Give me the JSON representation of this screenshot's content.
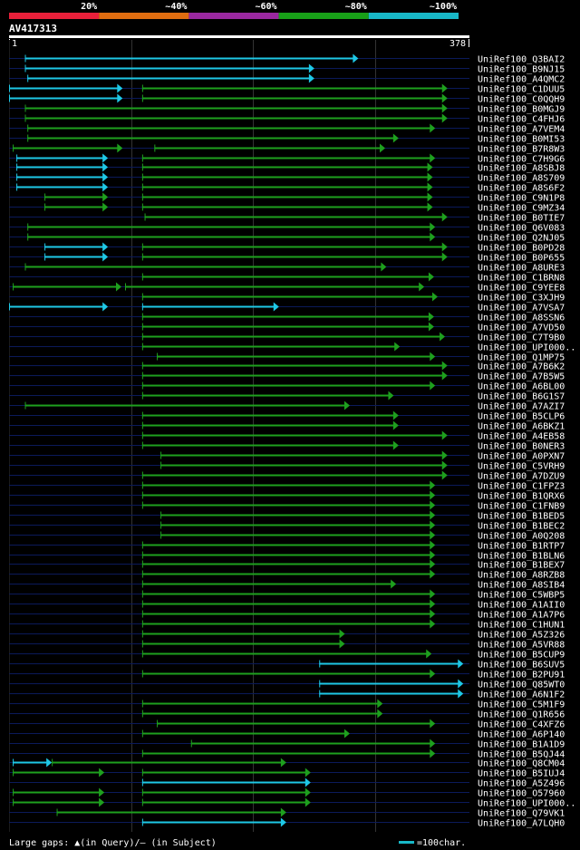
{
  "chart_data": {
    "type": "alignment",
    "title": "AV417313",
    "query_start_label": "1",
    "query_end_label": "378",
    "x_range": [
      1,
      378
    ],
    "identity_legend": [
      {
        "label": "20%",
        "color": "#e8203a"
      },
      {
        "label": "~40%",
        "color": "#e06d10"
      },
      {
        "label": "~60%",
        "color": "#9a28a0"
      },
      {
        "label": "~80%",
        "color": "#18a018"
      },
      {
        "label": "~100%",
        "color": "#18b8c8"
      }
    ],
    "hits": [
      {
        "name": "UniRef100_Q3BAI2",
        "segs": [
          [
            14,
            287,
            "c"
          ]
        ]
      },
      {
        "name": "UniRef100_B9NJ15",
        "segs": [
          [
            14,
            251,
            "c"
          ]
        ]
      },
      {
        "name": "UniRef100_A4QMC2",
        "segs": [
          [
            16,
            251,
            "c"
          ]
        ]
      },
      {
        "name": "UniRef100_C1DUU5",
        "segs": [
          [
            1,
            94,
            "c"
          ],
          [
            110,
            360,
            "g"
          ]
        ]
      },
      {
        "name": "UniRef100_C0QQH9",
        "segs": [
          [
            1,
            94,
            "c"
          ],
          [
            110,
            360,
            "g"
          ]
        ]
      },
      {
        "name": "UniRef100_B0MGJ9",
        "segs": [
          [
            14,
            360,
            "g"
          ]
        ]
      },
      {
        "name": "UniRef100_C4FHJ6",
        "segs": [
          [
            14,
            360,
            "g"
          ]
        ]
      },
      {
        "name": "UniRef100_A7VEM4",
        "segs": [
          [
            16,
            350,
            "g"
          ]
        ]
      },
      {
        "name": "UniRef100_B0MI53",
        "segs": [
          [
            16,
            320,
            "g"
          ]
        ]
      },
      {
        "name": "UniRef100_B7R8W3",
        "segs": [
          [
            4,
            94,
            "g"
          ],
          [
            120,
            309,
            "g"
          ]
        ]
      },
      {
        "name": "UniRef100_C7H9G6",
        "segs": [
          [
            7,
            82,
            "c"
          ],
          [
            110,
            350,
            "g"
          ]
        ]
      },
      {
        "name": "UniRef100_A8SBJ8",
        "segs": [
          [
            7,
            82,
            "c"
          ],
          [
            110,
            348,
            "g"
          ]
        ]
      },
      {
        "name": "UniRef100_A8S709",
        "segs": [
          [
            7,
            82,
            "c"
          ],
          [
            110,
            348,
            "g"
          ]
        ]
      },
      {
        "name": "UniRef100_A8S6F2",
        "segs": [
          [
            7,
            82,
            "c"
          ],
          [
            110,
            348,
            "g"
          ]
        ]
      },
      {
        "name": "UniRef100_C9N1P8",
        "segs": [
          [
            30,
            82,
            "g"
          ],
          [
            110,
            348,
            "g"
          ]
        ]
      },
      {
        "name": "UniRef100_C9MZ34",
        "segs": [
          [
            30,
            82,
            "g"
          ],
          [
            110,
            348,
            "g"
          ]
        ]
      },
      {
        "name": "UniRef100_B0TIE7",
        "segs": [
          [
            112,
            360,
            "g"
          ]
        ]
      },
      {
        "name": "UniRef100_Q6V083",
        "segs": [
          [
            16,
            350,
            "g"
          ]
        ]
      },
      {
        "name": "UniRef100_Q2NJ05",
        "segs": [
          [
            16,
            350,
            "g"
          ]
        ]
      },
      {
        "name": "UniRef100_B0PD28",
        "segs": [
          [
            30,
            82,
            "c"
          ],
          [
            110,
            360,
            "g"
          ]
        ]
      },
      {
        "name": "UniRef100_B0P655",
        "segs": [
          [
            30,
            82,
            "c"
          ],
          [
            110,
            360,
            "g"
          ]
        ]
      },
      {
        "name": "UniRef100_A8URE3",
        "segs": [
          [
            14,
            310,
            "g"
          ]
        ]
      },
      {
        "name": "UniRef100_C1BRN8",
        "segs": [
          [
            110,
            349,
            "g"
          ]
        ]
      },
      {
        "name": "UniRef100_C9YEE8",
        "segs": [
          [
            4,
            93,
            "g"
          ],
          [
            96,
            341,
            "g"
          ]
        ]
      },
      {
        "name": "UniRef100_C3XJH9",
        "segs": [
          [
            110,
            352,
            "g"
          ]
        ]
      },
      {
        "name": "UniRef100_A7VSA7",
        "segs": [
          [
            1,
            82,
            "c"
          ],
          [
            110,
            222,
            "c"
          ]
        ]
      },
      {
        "name": "UniRef100_A8SSN6",
        "segs": [
          [
            110,
            349,
            "g"
          ]
        ]
      },
      {
        "name": "UniRef100_A7VD50",
        "segs": [
          [
            110,
            349,
            "g"
          ]
        ]
      },
      {
        "name": "UniRef100_C7T9B0",
        "segs": [
          [
            110,
            358,
            "g"
          ]
        ]
      },
      {
        "name": "UniRef100_UPI000..",
        "segs": [
          [
            110,
            321,
            "g"
          ]
        ]
      },
      {
        "name": "UniRef100_Q1MP75",
        "segs": [
          [
            122,
            350,
            "g"
          ]
        ]
      },
      {
        "name": "UniRef100_A7B6K2",
        "segs": [
          [
            110,
            360,
            "g"
          ]
        ]
      },
      {
        "name": "UniRef100_A7B5W5",
        "segs": [
          [
            110,
            360,
            "g"
          ]
        ]
      },
      {
        "name": "UniRef100_A6BL00",
        "segs": [
          [
            110,
            350,
            "g"
          ]
        ]
      },
      {
        "name": "UniRef100_B6G1S7",
        "segs": [
          [
            110,
            316,
            "g"
          ]
        ]
      },
      {
        "name": "UniRef100_A7AZI7",
        "segs": [
          [
            14,
            280,
            "g"
          ]
        ]
      },
      {
        "name": "UniRef100_B5CLP6",
        "segs": [
          [
            110,
            320,
            "g"
          ]
        ]
      },
      {
        "name": "UniRef100_A6BKZ1",
        "segs": [
          [
            110,
            320,
            "g"
          ]
        ]
      },
      {
        "name": "UniRef100_A4EB58",
        "segs": [
          [
            110,
            360,
            "g"
          ]
        ]
      },
      {
        "name": "UniRef100_B0NER3",
        "segs": [
          [
            110,
            320,
            "g"
          ]
        ]
      },
      {
        "name": "UniRef100_A0PXN7",
        "segs": [
          [
            125,
            360,
            "g"
          ]
        ]
      },
      {
        "name": "UniRef100_C5VRH9",
        "segs": [
          [
            125,
            360,
            "g"
          ]
        ]
      },
      {
        "name": "UniRef100_A7DZU9",
        "segs": [
          [
            110,
            360,
            "g"
          ]
        ]
      },
      {
        "name": "UniRef100_C1FPZ3",
        "segs": [
          [
            110,
            350,
            "g"
          ]
        ]
      },
      {
        "name": "UniRef100_B1QRX6",
        "segs": [
          [
            110,
            350,
            "g"
          ]
        ]
      },
      {
        "name": "UniRef100_C1FNB9",
        "segs": [
          [
            110,
            350,
            "g"
          ]
        ]
      },
      {
        "name": "UniRef100_B1BED5",
        "segs": [
          [
            125,
            350,
            "g"
          ]
        ]
      },
      {
        "name": "UniRef100_B1BEC2",
        "segs": [
          [
            125,
            350,
            "g"
          ]
        ]
      },
      {
        "name": "UniRef100_A0Q208",
        "segs": [
          [
            125,
            350,
            "g"
          ]
        ]
      },
      {
        "name": "UniRef100_B1RTP7",
        "segs": [
          [
            110,
            350,
            "g"
          ]
        ]
      },
      {
        "name": "UniRef100_B1BLN6",
        "segs": [
          [
            110,
            350,
            "g"
          ]
        ]
      },
      {
        "name": "UniRef100_B1BEX7",
        "segs": [
          [
            110,
            350,
            "g"
          ]
        ]
      },
      {
        "name": "UniRef100_A8RZB8",
        "segs": [
          [
            110,
            350,
            "g"
          ]
        ]
      },
      {
        "name": "UniRef100_A8SIB4",
        "segs": [
          [
            110,
            318,
            "g"
          ]
        ]
      },
      {
        "name": "UniRef100_C5WBP5",
        "segs": [
          [
            110,
            350,
            "g"
          ]
        ]
      },
      {
        "name": "UniRef100_A1AII0",
        "segs": [
          [
            110,
            350,
            "g"
          ]
        ]
      },
      {
        "name": "UniRef100_A1A7P6",
        "segs": [
          [
            110,
            350,
            "g"
          ]
        ]
      },
      {
        "name": "UniRef100_C1HUN1",
        "segs": [
          [
            110,
            350,
            "g"
          ]
        ]
      },
      {
        "name": "UniRef100_A5Z326",
        "segs": [
          [
            110,
            276,
            "g"
          ]
        ]
      },
      {
        "name": "UniRef100_A5VR88",
        "segs": [
          [
            110,
            276,
            "g"
          ]
        ]
      },
      {
        "name": "UniRef100_B5CUP9",
        "segs": [
          [
            110,
            347,
            "g"
          ]
        ]
      },
      {
        "name": "UniRef100_B6SUV5",
        "segs": [
          [
            255,
            373,
            "c"
          ]
        ]
      },
      {
        "name": "UniRef100_B2PU91",
        "segs": [
          [
            110,
            350,
            "g"
          ]
        ]
      },
      {
        "name": "UniRef100_Q85WT0",
        "segs": [
          [
            255,
            373,
            "c"
          ]
        ]
      },
      {
        "name": "UniRef100_A6N1F2",
        "segs": [
          [
            255,
            373,
            "c"
          ]
        ]
      },
      {
        "name": "UniRef100_C5M1F9",
        "segs": [
          [
            110,
            307,
            "g"
          ]
        ]
      },
      {
        "name": "UniRef100_Q1R656",
        "segs": [
          [
            110,
            307,
            "g"
          ]
        ]
      },
      {
        "name": "UniRef100_C4XFZ6",
        "segs": [
          [
            122,
            350,
            "g"
          ]
        ]
      },
      {
        "name": "UniRef100_A6P140",
        "segs": [
          [
            110,
            280,
            "g"
          ]
        ]
      },
      {
        "name": "UniRef100_B1A1D9",
        "segs": [
          [
            150,
            350,
            "g"
          ]
        ]
      },
      {
        "name": "UniRef100_B5QJ44",
        "segs": [
          [
            110,
            350,
            "g"
          ]
        ]
      },
      {
        "name": "UniRef100_Q8CM04",
        "segs": [
          [
            4,
            36,
            "c"
          ],
          [
            36,
            228,
            "g"
          ]
        ]
      },
      {
        "name": "UniRef100_B5IUJ4",
        "segs": [
          [
            4,
            79,
            "g"
          ],
          [
            110,
            248,
            "g"
          ]
        ]
      },
      {
        "name": "UniRef100_A5Z496",
        "segs": [
          [
            110,
            248,
            "c"
          ]
        ]
      },
      {
        "name": "UniRef100_O57960",
        "segs": [
          [
            4,
            79,
            "g"
          ],
          [
            110,
            248,
            "g"
          ]
        ]
      },
      {
        "name": "UniRef100_UPI000..",
        "segs": [
          [
            4,
            79,
            "g"
          ],
          [
            110,
            248,
            "g"
          ]
        ]
      },
      {
        "name": "UniRef100_Q79VK1",
        "segs": [
          [
            40,
            228,
            "g"
          ]
        ]
      },
      {
        "name": "UniRef100_A7LQH0",
        "segs": [
          [
            110,
            228,
            "c"
          ]
        ]
      }
    ],
    "footer_legend": "Large gaps: ▲(in Query)/— (in Subject)",
    "scale_label": "=100char."
  }
}
